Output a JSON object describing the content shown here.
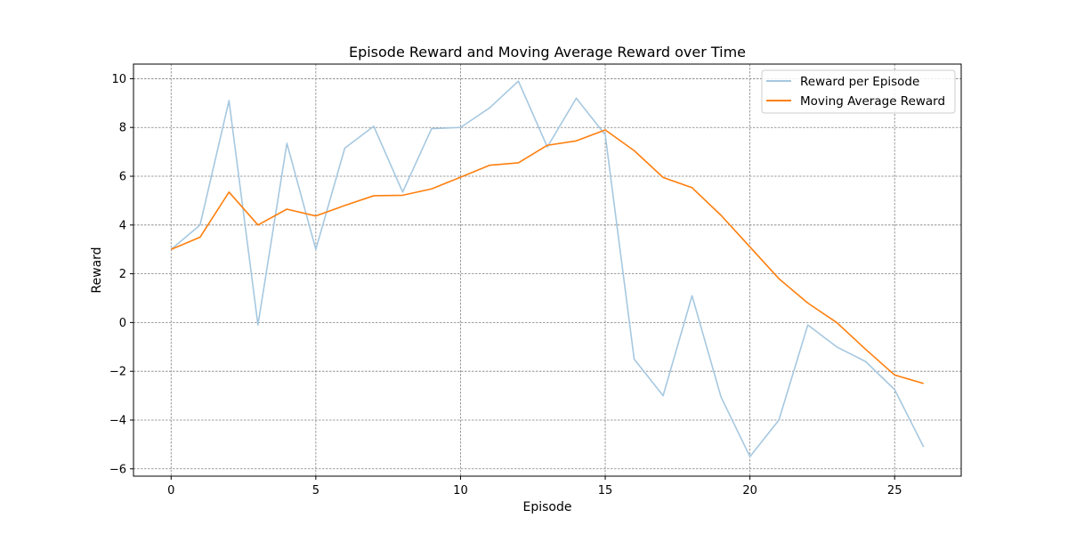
{
  "chart_data": {
    "type": "line",
    "title": "Episode Reward and Moving Average Reward over Time",
    "xlabel": "Episode",
    "ylabel": "Reward",
    "xlim": [
      -1.3,
      27.3
    ],
    "ylim": [
      -6.3,
      10.6
    ],
    "xticks": [
      0,
      5,
      10,
      15,
      20,
      25
    ],
    "yticks": [
      -6,
      -4,
      -2,
      0,
      2,
      4,
      6,
      8,
      10
    ],
    "grid": true,
    "legend_position": "top-right",
    "x": [
      0,
      1,
      2,
      3,
      4,
      5,
      6,
      7,
      8,
      9,
      10,
      11,
      12,
      13,
      14,
      15,
      16,
      17,
      18,
      19,
      20,
      21,
      22,
      23,
      24,
      25,
      26
    ],
    "series": [
      {
        "name": "Reward per Episode",
        "color": "#a6c8e0",
        "values": [
          3.0,
          4.0,
          9.1,
          -0.1,
          7.35,
          3.0,
          7.15,
          8.05,
          5.35,
          7.95,
          8.0,
          8.8,
          9.9,
          7.2,
          9.2,
          7.7,
          -1.5,
          -3.0,
          1.1,
          -3.05,
          -5.5,
          -4.0,
          -0.1,
          -1.0,
          -1.6,
          -2.75,
          -5.1
        ]
      },
      {
        "name": "Moving Average Reward",
        "color": "#ff7f0e",
        "values": [
          3.0,
          3.5,
          5.35,
          4.0,
          4.65,
          4.37,
          4.8,
          5.2,
          5.22,
          5.48,
          5.96,
          6.45,
          6.55,
          7.27,
          7.45,
          7.9,
          7.05,
          5.95,
          5.53,
          4.4,
          3.1,
          1.8,
          0.8,
          0.0,
          -1.1,
          -2.15,
          -2.5
        ]
      }
    ]
  }
}
